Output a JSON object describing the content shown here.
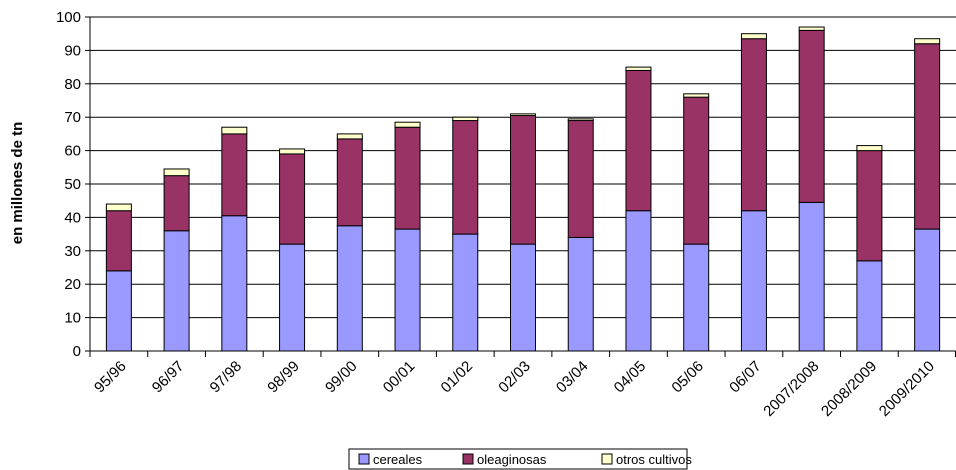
{
  "chart_data": {
    "type": "bar",
    "stacked": true,
    "title": "",
    "xlabel": "",
    "ylabel": "en millones de tn",
    "ylim": [
      0,
      100
    ],
    "yticks": [
      0,
      10,
      20,
      30,
      40,
      50,
      60,
      70,
      80,
      90,
      100
    ],
    "grid": "horizontal",
    "legend_position": "bottom",
    "categories": [
      "95/96",
      "96/97",
      "97/98",
      "98/99",
      "99/00",
      "00/01",
      "01/02",
      "02/03",
      "03/04",
      "04/05",
      "05/06",
      "06/07",
      "2007/2008",
      "2008/2009",
      "2009/2010"
    ],
    "series": [
      {
        "name": "cereales",
        "color": "#9999ff",
        "values": [
          24,
          36,
          40.5,
          32,
          37.5,
          36.5,
          35,
          32,
          34,
          42,
          32,
          42,
          44.5,
          27,
          36.5
        ]
      },
      {
        "name": "oleaginosas",
        "color": "#993366",
        "values": [
          18,
          16.5,
          24.5,
          27,
          26,
          30.5,
          34,
          38.5,
          35,
          42,
          44,
          51.5,
          51.5,
          33,
          55.5
        ]
      },
      {
        "name": "otros cultivos",
        "color": "#ffffcc",
        "values": [
          2,
          2,
          2,
          1.5,
          1.5,
          1.5,
          1,
          0.5,
          0.5,
          1,
          1,
          1.5,
          1,
          1.5,
          1.5
        ]
      }
    ]
  }
}
